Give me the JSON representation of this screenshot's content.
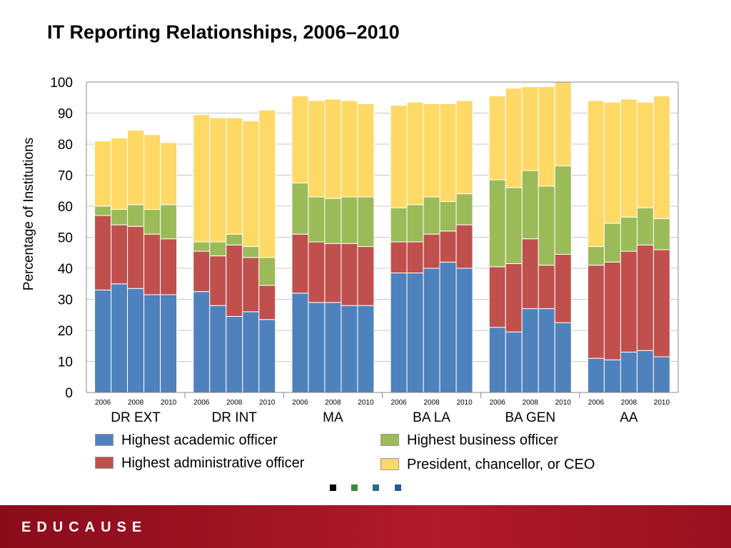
{
  "title": "IT Reporting Relationships, 2006–2010",
  "colors": {
    "academic": "#4f81bd",
    "administrative": "#c0504d",
    "business": "#9bbb59",
    "president": "#ffd966",
    "dot1": "#000000",
    "dot2": "#3a8a3a",
    "dot3": "#1f6f8b",
    "dot4": "#1f5a99"
  },
  "legend": [
    {
      "key": "academic",
      "label": "Highest academic officer"
    },
    {
      "key": "administrative",
      "label": "Highest administrative officer"
    },
    {
      "key": "business",
      "label": "Highest business officer"
    },
    {
      "key": "president",
      "label": "President, chancellor, or CEO"
    }
  ],
  "footer": {
    "logo_text": "EDUCAUSE"
  },
  "chart_data": {
    "type": "bar",
    "stacked": true,
    "ylabel": "Percentage of Institutions",
    "ylim": [
      0,
      100
    ],
    "yticks": [
      0,
      10,
      20,
      30,
      40,
      50,
      60,
      70,
      80,
      90,
      100
    ],
    "grid": true,
    "year_ticks": [
      "2006",
      "2008",
      "2010"
    ],
    "groups": [
      {
        "name": "DR EXT",
        "years": [
          "2006",
          "2007",
          "2008",
          "2009",
          "2010"
        ],
        "academic": [
          33,
          35,
          33.5,
          31.5,
          31.5
        ],
        "administrative": [
          24,
          19,
          20,
          19.5,
          18
        ],
        "business": [
          3,
          5,
          7,
          8,
          11
        ],
        "president": [
          21,
          23,
          24,
          24,
          20
        ]
      },
      {
        "name": "DR INT",
        "years": [
          "2006",
          "2007",
          "2008",
          "2009",
          "2010"
        ],
        "academic": [
          32.5,
          28,
          24.5,
          26,
          23.5
        ],
        "administrative": [
          13,
          16,
          23,
          17.5,
          11
        ],
        "business": [
          3,
          4.5,
          3.5,
          3.5,
          9
        ],
        "president": [
          41,
          40,
          37.5,
          40.5,
          47.5
        ]
      },
      {
        "name": "MA",
        "years": [
          "2006",
          "2007",
          "2008",
          "2009",
          "2010"
        ],
        "academic": [
          32,
          29,
          29,
          28,
          28
        ],
        "administrative": [
          19,
          19.5,
          19,
          20,
          19
        ],
        "business": [
          16.5,
          14.5,
          14.5,
          15,
          16
        ],
        "president": [
          28,
          31,
          32,
          31,
          30
        ]
      },
      {
        "name": "BA LA",
        "years": [
          "2006",
          "2007",
          "2008",
          "2009",
          "2010"
        ],
        "academic": [
          38.5,
          38.5,
          40,
          42,
          40
        ],
        "administrative": [
          10,
          10,
          11,
          10,
          14
        ],
        "business": [
          11,
          12,
          12,
          9.5,
          10
        ],
        "president": [
          33,
          33,
          30,
          31.5,
          30
        ]
      },
      {
        "name": "BA GEN",
        "years": [
          "2006",
          "2007",
          "2008",
          "2009",
          "2010"
        ],
        "academic": [
          21,
          19.5,
          27,
          27,
          22.5
        ],
        "administrative": [
          19.5,
          22,
          22.5,
          14,
          22
        ],
        "business": [
          28,
          24.5,
          22,
          25.5,
          28.5
        ],
        "president": [
          27,
          32,
          27,
          32,
          27
        ]
      },
      {
        "name": "AA",
        "years": [
          "2006",
          "2007",
          "2008",
          "2009",
          "2010"
        ],
        "academic": [
          11,
          10.5,
          13,
          13.5,
          11.5
        ],
        "administrative": [
          30,
          31.5,
          32.5,
          34,
          34.5
        ],
        "business": [
          6,
          12.5,
          11,
          12,
          10
        ],
        "president": [
          47,
          39,
          38,
          34,
          39.5
        ]
      }
    ]
  }
}
